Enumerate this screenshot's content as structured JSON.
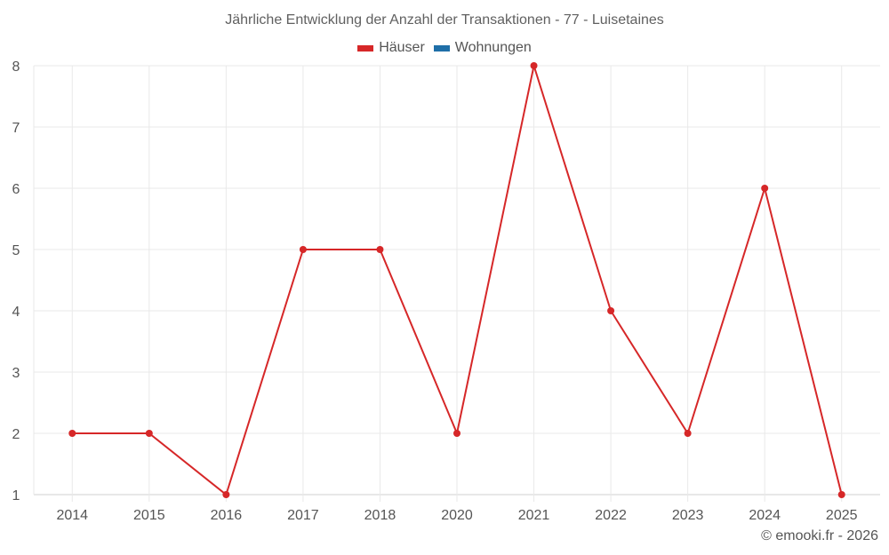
{
  "chart": {
    "title": "Jährliche Entwicklung der Anzahl der Transaktionen - 77 - Luisetaines",
    "credit": "© emooki.fr - 2026",
    "colors": {
      "houses": "#d62728",
      "apartments": "#1f6fa8",
      "grid": "#e6e6e6",
      "axis": "#d0d0d0"
    },
    "legend": [
      {
        "label": "Häuser",
        "color": "#d62728"
      },
      {
        "label": "Wohnungen",
        "color": "#1f6fa8"
      }
    ]
  },
  "chart_data": {
    "type": "line",
    "title": "Jährliche Entwicklung der Anzahl der Transaktionen - 77 - Luisetaines",
    "xlabel": "",
    "ylabel": "",
    "categories": [
      "2014",
      "2015",
      "2016",
      "2017",
      "2018",
      "2020",
      "2021",
      "2022",
      "2023",
      "2024",
      "2025"
    ],
    "series": [
      {
        "name": "Häuser",
        "color": "#d62728",
        "values": [
          2,
          2,
          1,
          5,
          5,
          2,
          8,
          4,
          2,
          6,
          1
        ]
      },
      {
        "name": "Wohnungen",
        "color": "#1f6fa8",
        "values": []
      }
    ],
    "ylim": [
      1,
      8
    ],
    "yticks": [
      1,
      2,
      3,
      4,
      5,
      6,
      7,
      8
    ],
    "grid": true,
    "legend_position": "top-center"
  }
}
